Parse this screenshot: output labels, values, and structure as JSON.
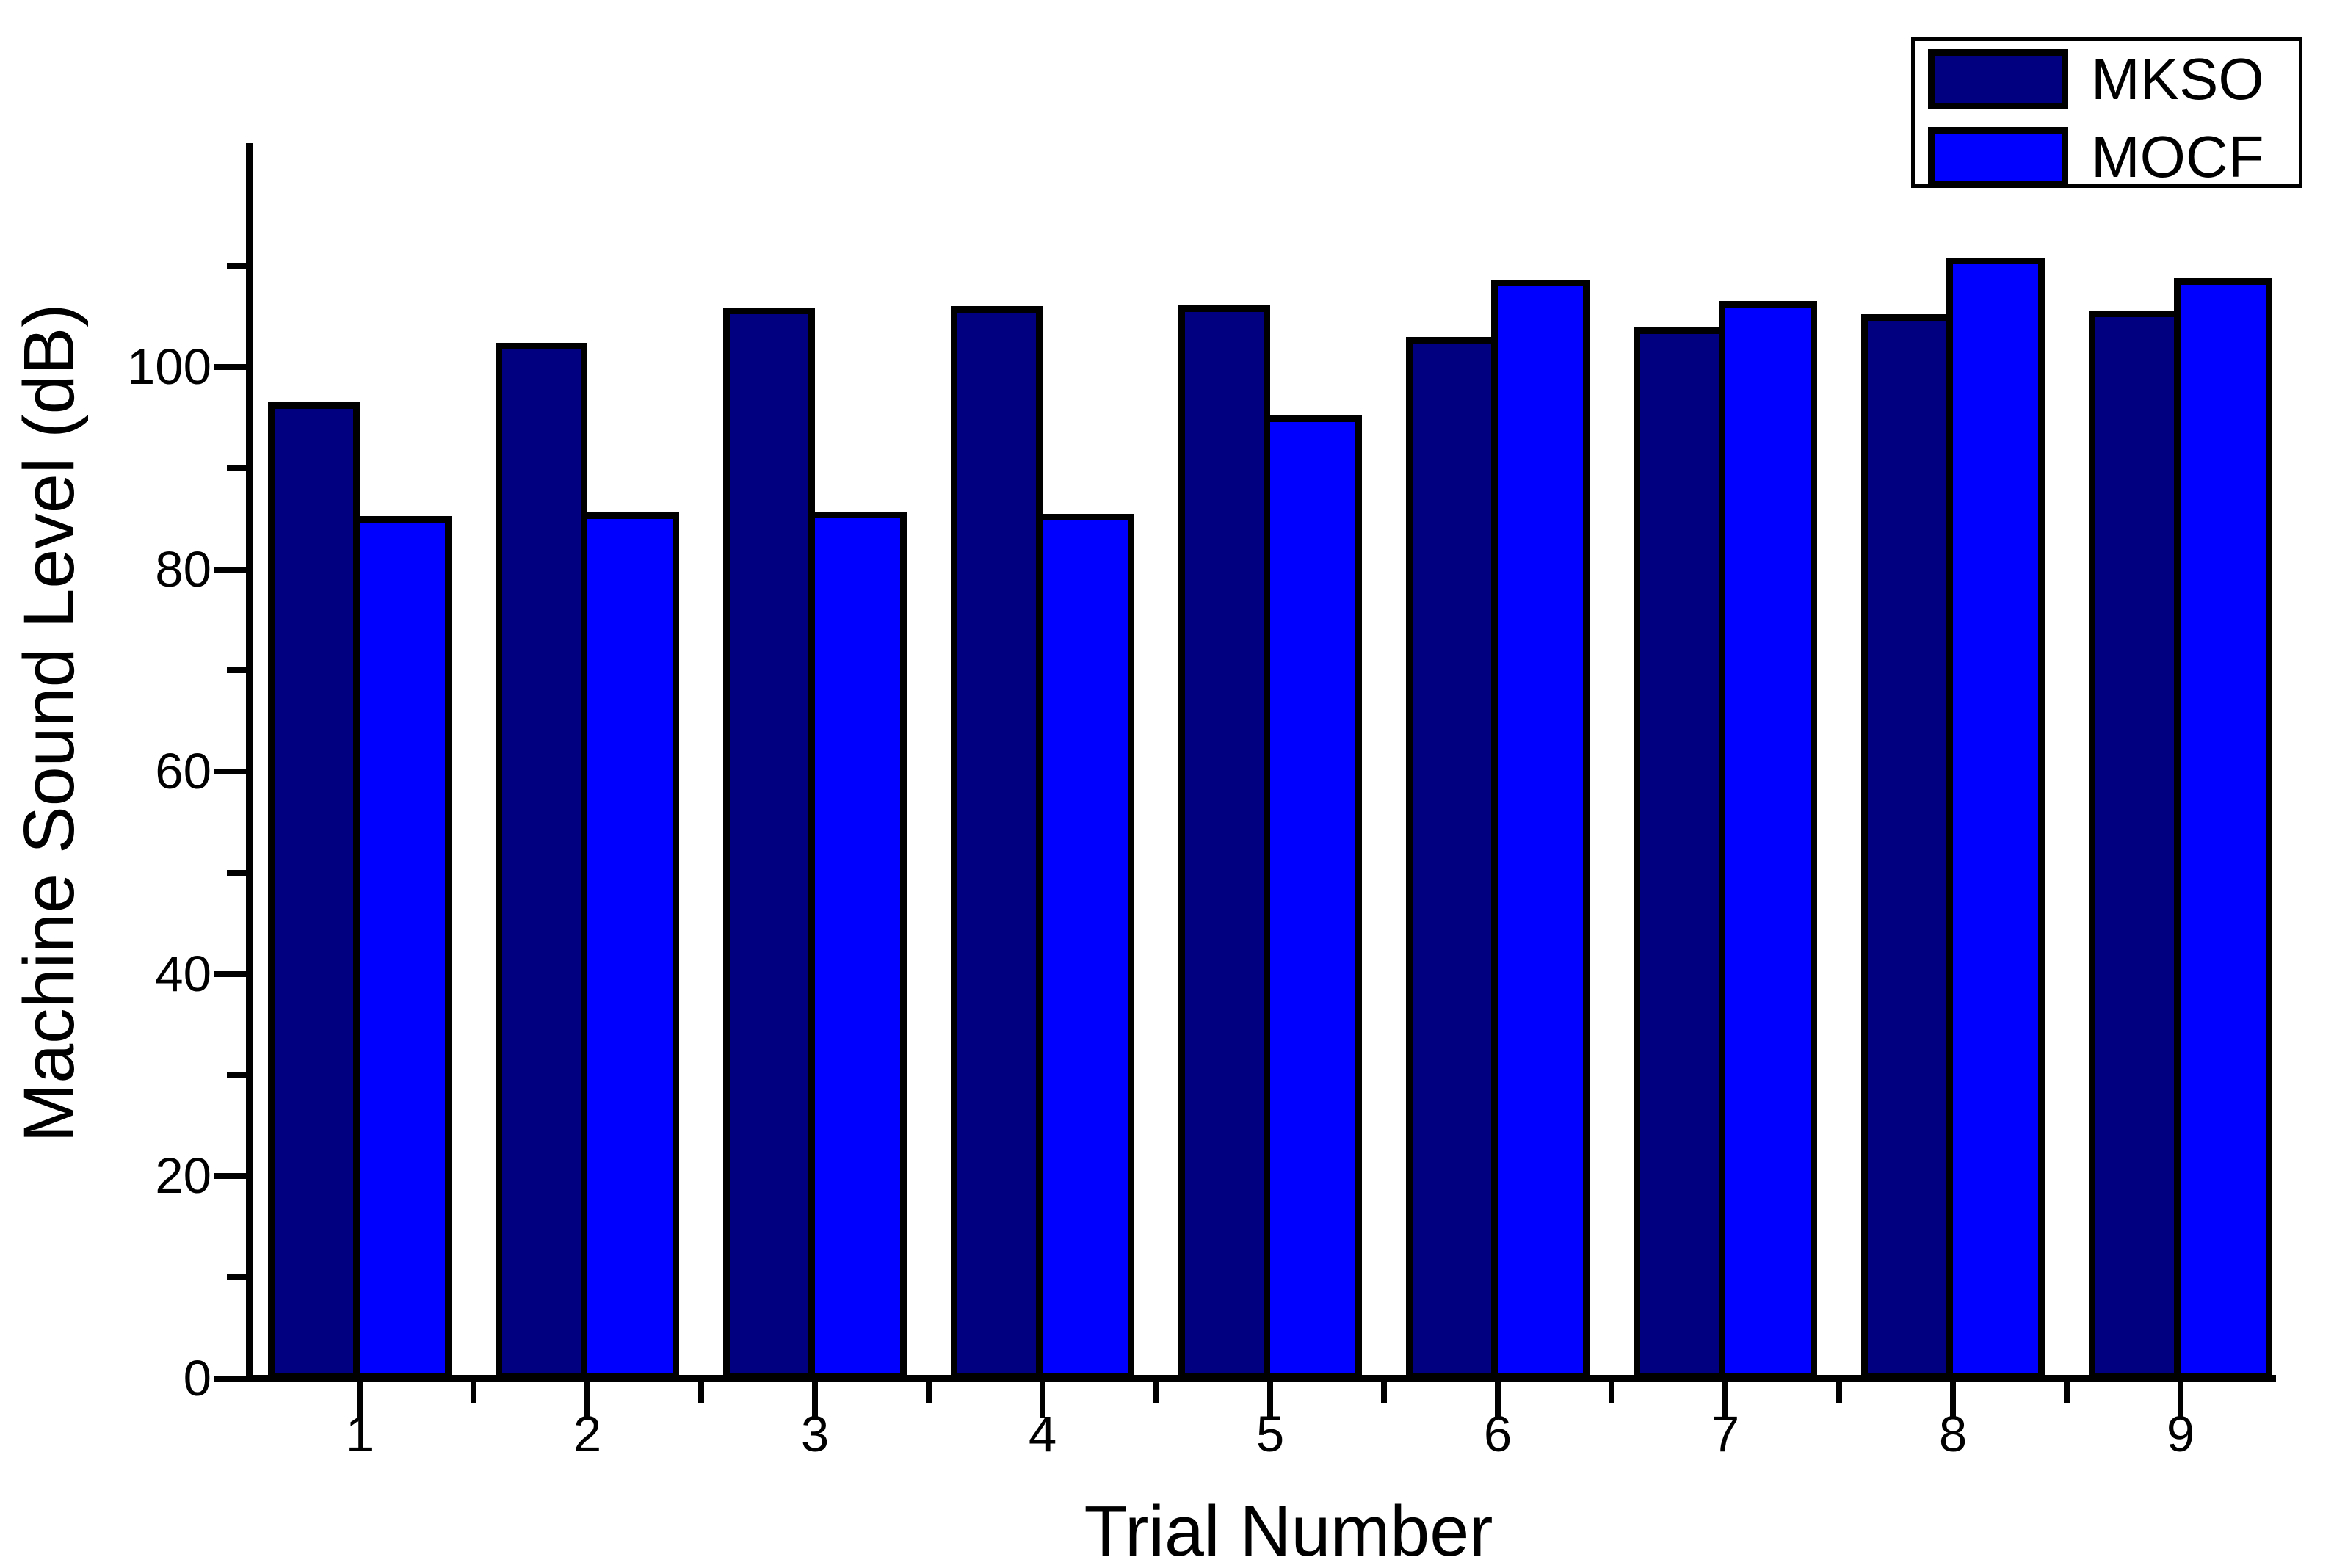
{
  "chart_data": {
    "type": "bar",
    "title": "",
    "xlabel": "Trial Number",
    "ylabel": "Machine Sound Level (dB)",
    "categories": [
      "1",
      "2",
      "3",
      "4",
      "5",
      "6",
      "7",
      "8",
      "9"
    ],
    "series": [
      {
        "name": "MKSO",
        "color": "#000080",
        "values": [
          96.5,
          102.4,
          105.9,
          106.0,
          106.1,
          103.0,
          103.9,
          105.2,
          105.6
        ]
      },
      {
        "name": "MOCF",
        "color": "#0000ff",
        "values": [
          85.3,
          85.6,
          85.7,
          85.5,
          95.2,
          108.6,
          106.5,
          110.8,
          108.8
        ]
      }
    ],
    "ylim": [
      0,
      122
    ],
    "yticks_major": [
      0,
      20,
      40,
      60,
      80,
      100
    ],
    "yticks_minor": [
      10,
      30,
      50,
      70,
      90,
      110
    ],
    "x_minor_ticks_between_groups": true,
    "legend_position": "top-right",
    "grid": false,
    "axis_color": "#000000",
    "background_color": "#ffffff"
  }
}
